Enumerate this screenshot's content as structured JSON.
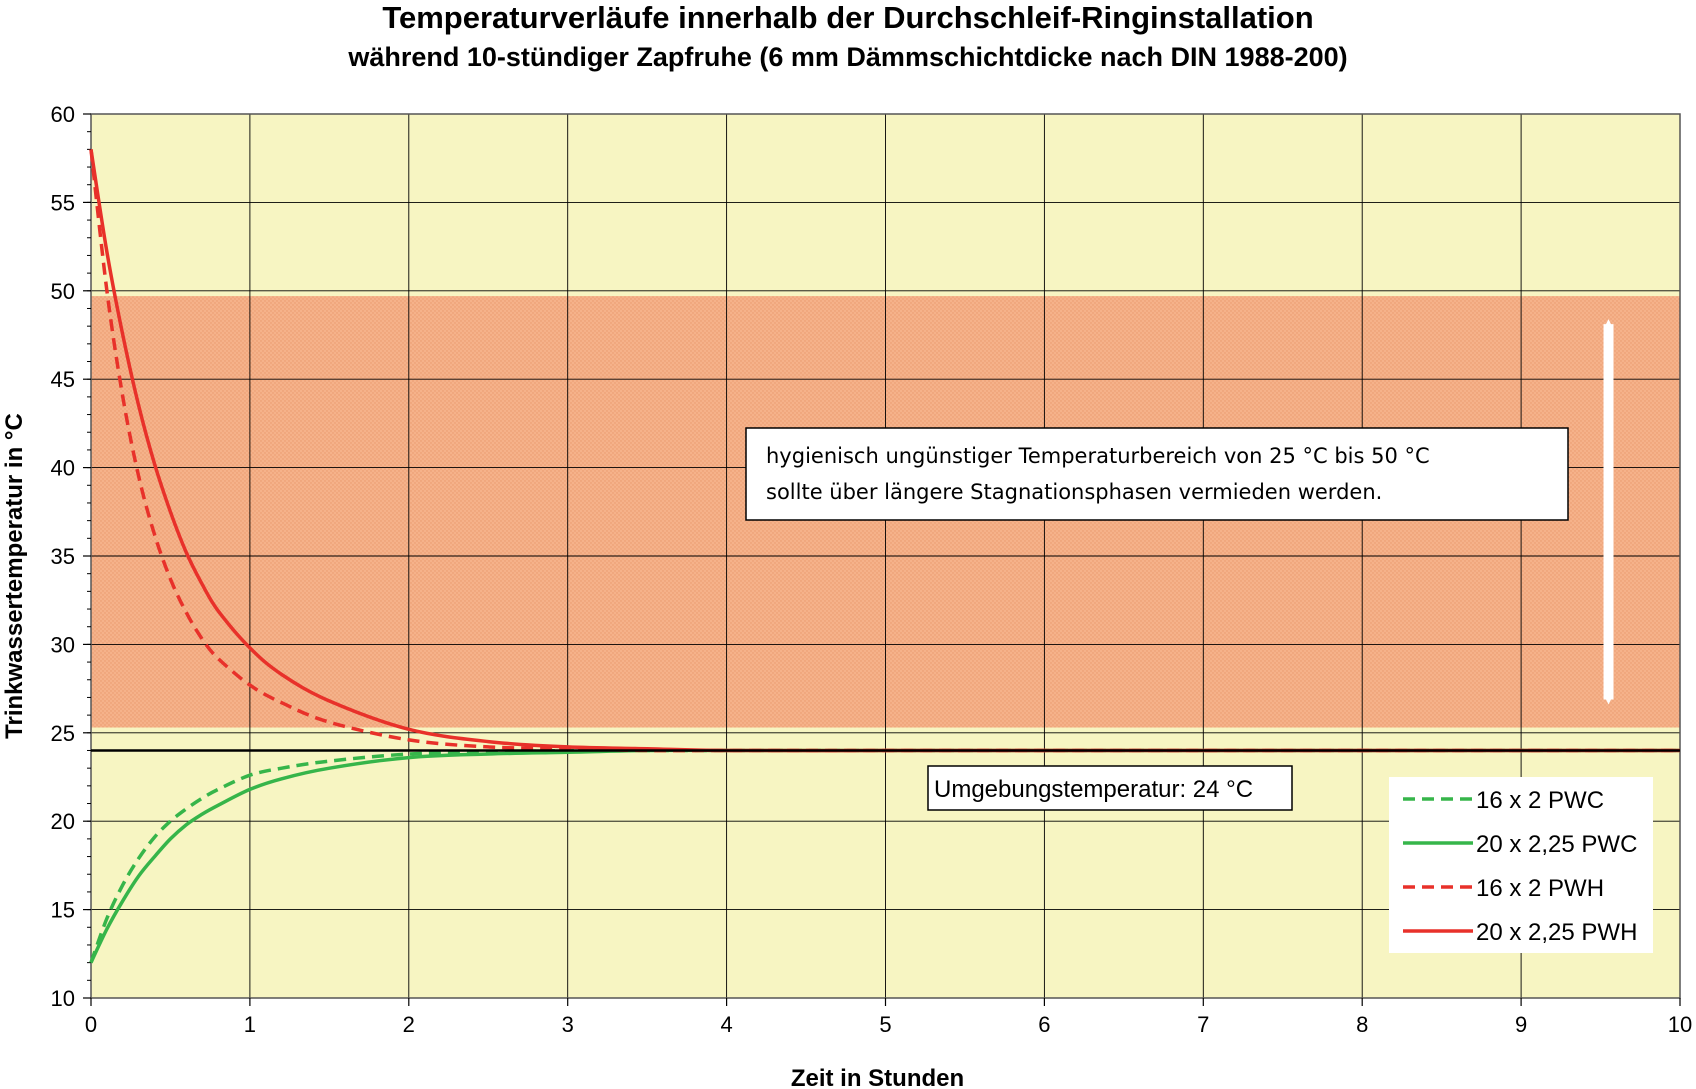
{
  "chart_data": {
    "type": "line",
    "title": "Temperaturverläufe innerhalb der Durchschleif-Ringinstallation",
    "subtitle": "während 10-stündiger Zapfruhe  (6 mm Dämmschichtdicke nach DIN 1988-200)",
    "xlabel": "Zeit in Stunden",
    "ylabel": "Trinkwassertemperatur in °C",
    "xlim": [
      0,
      10
    ],
    "ylim": [
      10,
      60
    ],
    "xticks": [
      "0",
      "1",
      "2",
      "3",
      "4",
      "5",
      "6",
      "7",
      "8",
      "9",
      "10"
    ],
    "yticks": [
      "10",
      "15",
      "20",
      "25",
      "30",
      "35",
      "40",
      "45",
      "50",
      "55",
      "60"
    ],
    "grid": true,
    "band": {
      "from": 25.3,
      "to": 49.7,
      "color": "#f5b28a"
    },
    "background_color": "#f7f5c2",
    "ambient": {
      "value": 24,
      "color": "#000000",
      "label": "Umgebungstemperatur: 24 °C"
    },
    "annotation": [
      "hygienisch ungünstiger Temperaturbereich von 25 °C bis 50 °C",
      "sollte über längere Stagnationsphasen vermieden werden."
    ],
    "legend_position": "bottom-right",
    "x": [
      0,
      0.1,
      0.2,
      0.3,
      0.4,
      0.5,
      0.6,
      0.7,
      0.8,
      1.0,
      1.2,
      1.5,
      2.0,
      2.5,
      3.0,
      3.5,
      4.0,
      5.0,
      6.0,
      7.0,
      8.0,
      9.0,
      10.0
    ],
    "series": [
      {
        "name": "16 x 2 PWC",
        "color": "#36b54a",
        "dash": true,
        "values": [
          12.0,
          14.5,
          16.4,
          17.9,
          19.1,
          20.0,
          20.7,
          21.3,
          21.8,
          22.6,
          23.0,
          23.4,
          23.8,
          23.9,
          24.0,
          24.0,
          24.0,
          24.0,
          24.0,
          24.0,
          24.0,
          24.0,
          24.0
        ]
      },
      {
        "name": "20 x 2,25 PWC",
        "color": "#36b54a",
        "dash": false,
        "values": [
          12.0,
          13.9,
          15.5,
          16.9,
          18.0,
          19.0,
          19.8,
          20.4,
          20.9,
          21.8,
          22.4,
          23.0,
          23.6,
          23.8,
          23.9,
          24.0,
          24.0,
          24.0,
          24.0,
          24.0,
          24.0,
          24.0,
          24.0
        ]
      },
      {
        "name": "16 x 2 PWH",
        "color": "#e8312a",
        "dash": true,
        "values": [
          58.0,
          50.0,
          44.0,
          39.5,
          36.2,
          33.7,
          31.8,
          30.3,
          29.2,
          27.7,
          26.7,
          25.6,
          24.6,
          24.2,
          24.1,
          24.0,
          24.0,
          24.0,
          24.0,
          24.0,
          24.0,
          24.0,
          24.0
        ]
      },
      {
        "name": "20 x 2,25 PWH",
        "color": "#e8312a",
        "dash": false,
        "values": [
          58.0,
          52.2,
          47.5,
          43.5,
          40.2,
          37.5,
          35.2,
          33.4,
          31.9,
          29.8,
          28.3,
          26.8,
          25.2,
          24.5,
          24.2,
          24.1,
          24.0,
          24.0,
          24.0,
          24.0,
          24.0,
          24.0,
          24.0
        ]
      }
    ]
  }
}
